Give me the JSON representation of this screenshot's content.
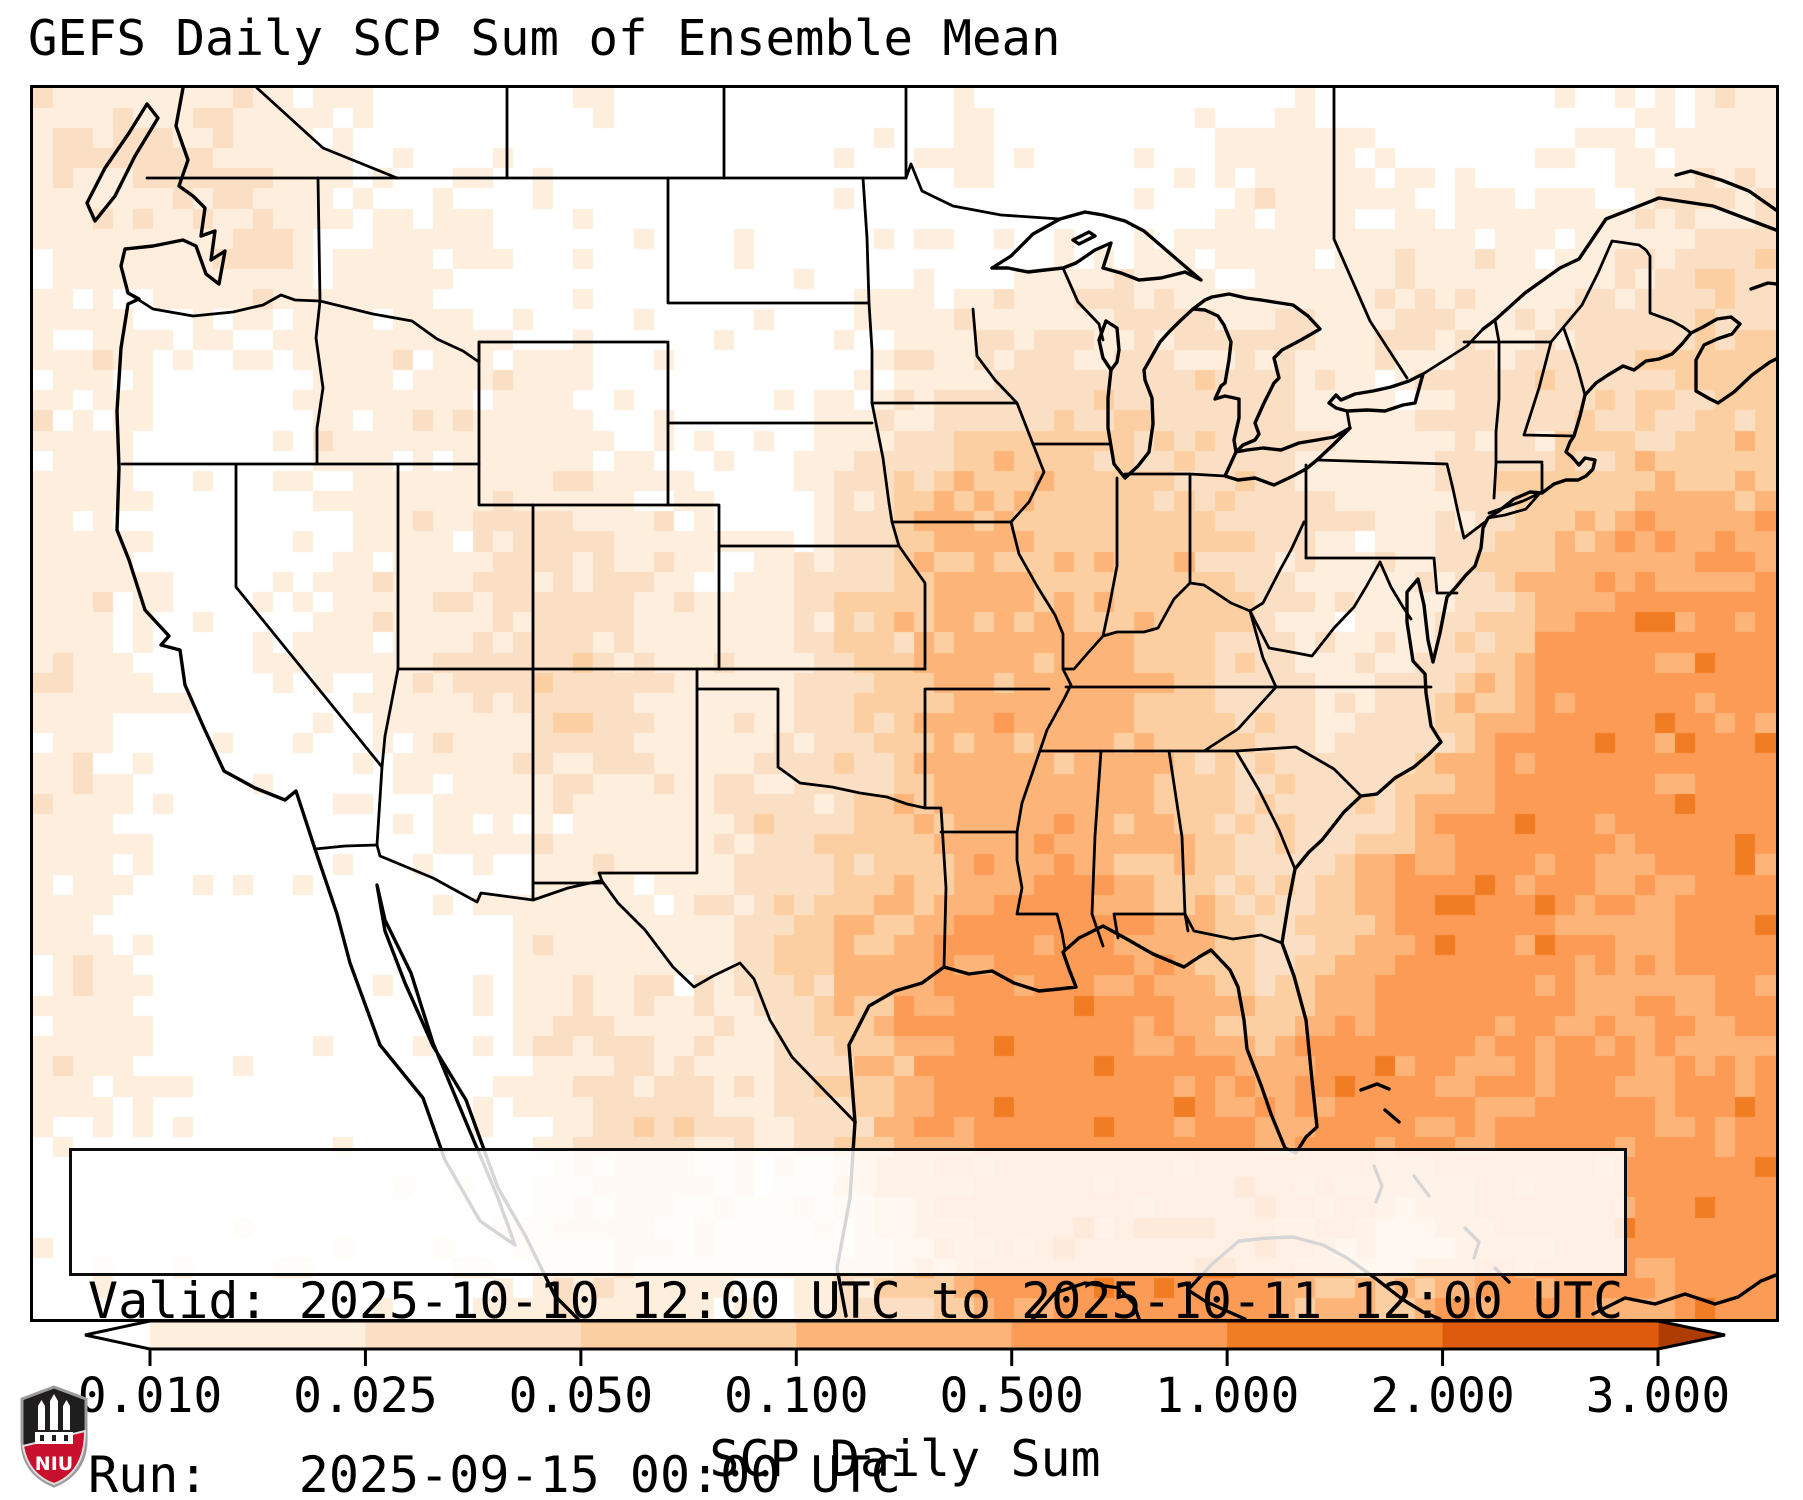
{
  "title": "GEFS Daily SCP Sum of Ensemble Mean",
  "info_box": {
    "line1": "Valid: 2025-10-10 12:00 UTC to 2025-10-11 12:00 UTC",
    "line2": "Run:   2025-09-15 00:00 UTC"
  },
  "colorbar": {
    "label": "SCP Daily Sum",
    "tick_labels": [
      "0.010",
      "0.025",
      "0.050",
      "0.100",
      "0.500",
      "1.000",
      "2.000",
      "3.000"
    ],
    "levels": [
      0.01,
      0.025,
      0.05,
      0.1,
      0.5,
      1.0,
      2.0,
      3.0
    ],
    "segment_colors": [
      "#fdeedd",
      "#fbdfc4",
      "#fccfa2",
      "#fcb479",
      "#fb9b56",
      "#f07c23",
      "#de5b0d"
    ],
    "under_color": "#ffffff",
    "over_color": "#ae3d03",
    "extend": "both"
  },
  "logo": {
    "text": "NIU",
    "shield_dark": "#1f1d1e",
    "shield_red": "#c8102e",
    "shield_trim": "#9b9b9b"
  },
  "chart_data": {
    "type": "heatmap",
    "title": "GEFS Daily SCP Sum of Ensemble Mean",
    "units_label": "SCP Daily Sum",
    "region": "CONUS and surrounding waters",
    "valid": "2025-10-10 12:00 UTC to 2025-10-11 12:00 UTC",
    "run": "2025-09-15 00:00 UTC",
    "colorbar_levels": [
      0.01,
      0.025,
      0.05,
      0.1,
      0.5,
      1.0,
      2.0,
      3.0
    ],
    "colormap": "Oranges (discrete, extend both)",
    "level_key": "0 = below 0.010 (white); 1..7 = successive bins 0.010-0.025, 0.025-0.050, 0.050-0.100, 0.100-0.500, 0.500-1.000, 1.000-2.000, 2.000-3.000",
    "grid_note": "coarse 25x18 field of bin levels, west-to-east per row, north rows first; highest values over Gulf of Mexico, western Atlantic, lower Mississippi valley; near-zero over plains and interior west",
    "grid_rows": [
      "1111100000000000000000011",
      "1221100000000100011000111",
      "1112011000000000111111122",
      "1111110000001112111211222",
      "1100111100001222221122233",
      "1100111110012333221122333",
      "1100011211013433321123444",
      "1100111221123443321124555",
      "1100112221123444321135555",
      "1100011221123444322245555",
      "1100001111223444322355555",
      "1100000111233454323555455",
      "1100000111234555423555455",
      "1100000121134555435554545",
      "1100000122124555545545455",
      "0000000022124555555455555",
      "0000000121113555554345555",
      "0000000111012455553455455"
    ]
  }
}
